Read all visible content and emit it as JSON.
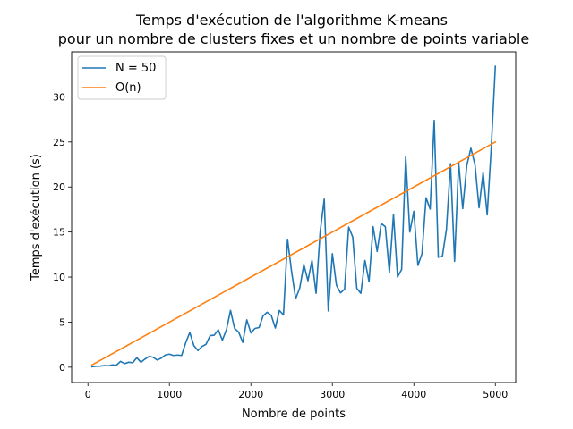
{
  "chart_data": {
    "type": "line",
    "title": "Temps d'exécution de l'algorithme K-means",
    "subtitle": "pour un nombre de clusters fixes et un nombre de points variable",
    "xlabel": "Nombre de points",
    "ylabel": "Temps d'exécution (s)",
    "xlim": [
      -200,
      5250
    ],
    "ylim": [
      -1.7,
      35
    ],
    "x_ticks": [
      {
        "value": 0,
        "label": "0"
      },
      {
        "value": 1000,
        "label": "1000"
      },
      {
        "value": 2000,
        "label": "2000"
      },
      {
        "value": 3000,
        "label": "3000"
      },
      {
        "value": 4000,
        "label": "4000"
      },
      {
        "value": 5000,
        "label": "5000"
      }
    ],
    "y_ticks": [
      {
        "value": 0,
        "label": "0"
      },
      {
        "value": 5,
        "label": "5"
      },
      {
        "value": 10,
        "label": "10"
      },
      {
        "value": 15,
        "label": "15"
      },
      {
        "value": 20,
        "label": "20"
      },
      {
        "value": 25,
        "label": "25"
      },
      {
        "value": 30,
        "label": "30"
      }
    ],
    "grid": false,
    "legend_position": "top-left",
    "series": [
      {
        "name": "N = 50",
        "color": "#1f77b4",
        "x": [
          50,
          100,
          150,
          200,
          250,
          300,
          350,
          400,
          450,
          500,
          550,
          600,
          650,
          700,
          750,
          800,
          850,
          900,
          950,
          1000,
          1050,
          1100,
          1150,
          1200,
          1250,
          1300,
          1350,
          1400,
          1450,
          1500,
          1550,
          1600,
          1650,
          1700,
          1750,
          1800,
          1850,
          1900,
          1950,
          2000,
          2050,
          2100,
          2150,
          2200,
          2250,
          2300,
          2350,
          2400,
          2450,
          2500,
          2550,
          2600,
          2650,
          2700,
          2750,
          2800,
          2850,
          2900,
          2950,
          3000,
          3050,
          3100,
          3150,
          3200,
          3250,
          3300,
          3350,
          3400,
          3450,
          3500,
          3550,
          3600,
          3650,
          3700,
          3750,
          3800,
          3850,
          3900,
          3950,
          4000,
          4050,
          4100,
          4150,
          4200,
          4250,
          4300,
          4350,
          4400,
          4450,
          4500,
          4550,
          4600,
          4650,
          4700,
          4750,
          4800,
          4850,
          4900,
          4950,
          5000
        ],
        "y": [
          0.05,
          0.1,
          0.12,
          0.18,
          0.15,
          0.25,
          0.22,
          0.65,
          0.4,
          0.55,
          0.5,
          1.05,
          0.55,
          0.9,
          1.2,
          1.1,
          0.8,
          1.0,
          1.35,
          1.45,
          1.3,
          1.35,
          1.3,
          2.7,
          3.85,
          2.4,
          1.85,
          2.3,
          2.55,
          3.5,
          3.55,
          4.15,
          3.0,
          4.15,
          6.3,
          4.3,
          3.9,
          2.75,
          5.25,
          3.8,
          4.3,
          4.4,
          5.7,
          6.1,
          5.75,
          4.35,
          6.3,
          5.8,
          14.2,
          10.6,
          7.6,
          8.8,
          11.4,
          9.6,
          11.85,
          8.2,
          15.0,
          18.65,
          6.25,
          12.6,
          9.1,
          8.25,
          8.65,
          15.55,
          14.45,
          8.75,
          8.2,
          11.85,
          9.5,
          15.6,
          12.85,
          15.95,
          15.6,
          10.5,
          16.95,
          10.0,
          10.85,
          23.4,
          15.0,
          17.3,
          11.3,
          12.6,
          18.8,
          17.55,
          27.4,
          12.2,
          12.3,
          15.3,
          22.6,
          11.75,
          22.7,
          17.6,
          22.4,
          24.3,
          22.5,
          17.7,
          21.6,
          16.9,
          24.4,
          33.4
        ]
      },
      {
        "name": "O(n)",
        "color": "#ff7f0e",
        "x": [
          50,
          5000
        ],
        "y": [
          0.25,
          25.0
        ]
      }
    ]
  }
}
